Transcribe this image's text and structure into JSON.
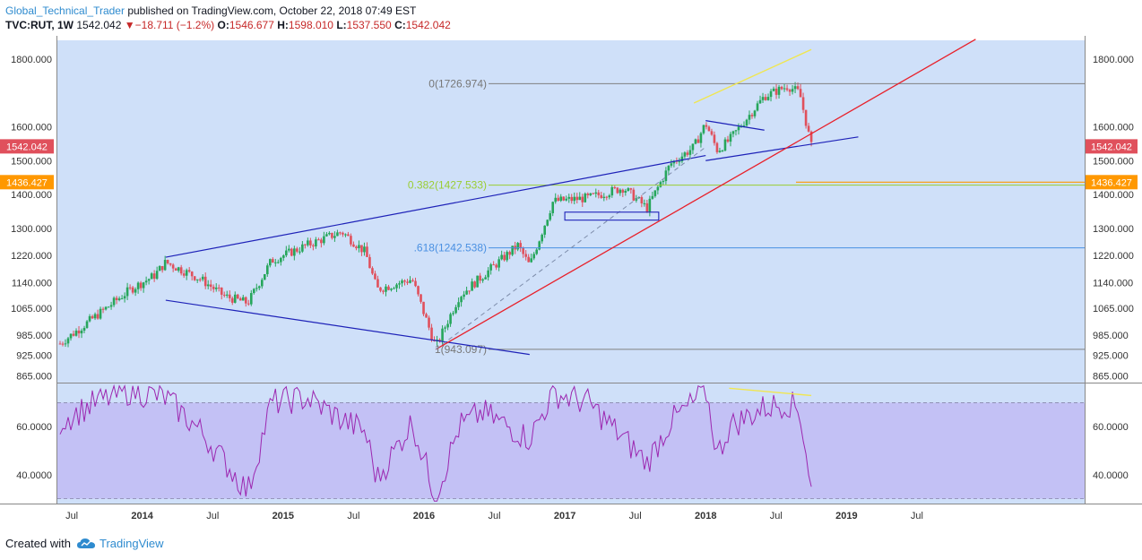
{
  "header": {
    "author": "Global_Technical_Trader",
    "published": "published on TradingView.com, October 22, 2018 07:49 EST",
    "symbol": "TVC:RUT, 1W",
    "price": "1542.042",
    "change": "−18.711 (−1.2%)",
    "open_label": "O:",
    "open": "1546.677",
    "high_label": "H:",
    "high": "1598.010",
    "low_label": "L:",
    "low": "1537.550",
    "close_label": "C:",
    "close": "1542.042"
  },
  "footer": {
    "created_with": "Created with",
    "brand": "TradingView"
  },
  "colors": {
    "panel_bg": "#cfe0f9",
    "up_candle": "#26a65b",
    "down_candle": "#e0505c",
    "trendline_blue": "#1e22b8",
    "trendline_red": "#e8202a",
    "highlight_yellow": "#f0e650",
    "fib_0": "#808080",
    "fib_0382": "#9acd32",
    "fib_0618": "#4a90e2",
    "fib_1": "#808080",
    "rsi_line": "#9c27b0",
    "rsi_band": "#b9a8f3",
    "price_tag_red": "#e0505c",
    "price_tag_orange": "#ff9800"
  },
  "chart_data": {
    "type": "line",
    "title": "TVC:RUT, 1W",
    "price_axis": {
      "ticks": [
        "865.000",
        "925.000",
        "985.000",
        "1065.000",
        "1140.000",
        "1220.000",
        "1300.000",
        "1400.000",
        "1500.000",
        "1600.000",
        "1800.000"
      ],
      "range": [
        845,
        1855
      ]
    },
    "time_axis": {
      "ticks": [
        "Jul",
        "2014",
        "Jul",
        "2015",
        "Jul",
        "2016",
        "Jul",
        "2017",
        "Jul",
        "2018",
        "Jul",
        "2019",
        "Jul"
      ],
      "bold_ticks": [
        "2014",
        "2015",
        "2016",
        "2017",
        "2018",
        "2019"
      ]
    },
    "price_tags": [
      {
        "label": "1542.042",
        "value": 1542.042,
        "color": "red"
      },
      {
        "label": "1436.427",
        "value": 1436.427,
        "color": "orange"
      }
    ],
    "fib_levels": [
      {
        "label": "0(1726.974)",
        "value": 1726.974
      },
      {
        "label": "0.382(1427.533)",
        "value": 1427.533
      },
      {
        "label": ".618(1242.538)",
        "value": 1242.538
      },
      {
        "label": "1(943.097)",
        "value": 943.097
      }
    ],
    "price_series": {
      "name": "TVC:RUT",
      "x": [
        "2013-06",
        "2013-09",
        "2013-12",
        "2014-02",
        "2014-03",
        "2014-06",
        "2014-08",
        "2014-10",
        "2014-12",
        "2015-03",
        "2015-06",
        "2015-08",
        "2015-09",
        "2015-12",
        "2016-02",
        "2016-04",
        "2016-06",
        "2016-09",
        "2016-10",
        "2016-12",
        "2017-03",
        "2017-06",
        "2017-08",
        "2017-10",
        "2017-12",
        "2018-01",
        "2018-02",
        "2018-03",
        "2018-06",
        "2018-08",
        "2018-09",
        "2018-10"
      ],
      "y": [
        960,
        1040,
        1120,
        1160,
        1200,
        1150,
        1100,
        1080,
        1205,
        1250,
        1290,
        1230,
        1120,
        1150,
        950,
        1100,
        1160,
        1250,
        1190,
        1380,
        1390,
        1420,
        1360,
        1490,
        1540,
        1610,
        1530,
        1560,
        1690,
        1720,
        1700,
        1542
      ]
    },
    "rsi": {
      "ticks": [
        "40.0000",
        "60.0000"
      ],
      "band": [
        30,
        70
      ],
      "range": [
        28,
        78
      ],
      "x": [
        "2013-06",
        "2013-09",
        "2013-12",
        "2014-03",
        "2014-06",
        "2014-10",
        "2014-12",
        "2015-03",
        "2015-06",
        "2015-08",
        "2015-09",
        "2015-12",
        "2016-02",
        "2016-04",
        "2016-06",
        "2016-10",
        "2016-12",
        "2017-03",
        "2017-08",
        "2017-10",
        "2017-12",
        "2018-01",
        "2018-02",
        "2018-03",
        "2018-06",
        "2018-08",
        "2018-09",
        "2018-10"
      ],
      "y": [
        62,
        70,
        75,
        72,
        58,
        33,
        70,
        72,
        63,
        58,
        38,
        62,
        31,
        60,
        66,
        55,
        74,
        70,
        45,
        62,
        70,
        76,
        48,
        60,
        68,
        70,
        67,
        35
      ]
    }
  }
}
